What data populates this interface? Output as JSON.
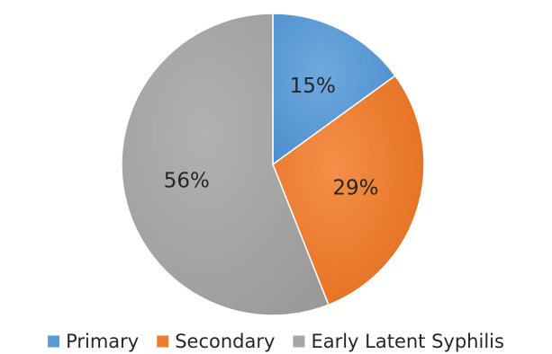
{
  "chart_data": {
    "type": "pie",
    "title": "",
    "slices": [
      {
        "label": "Primary",
        "value": 15,
        "display": "15%",
        "color": "#5B9BD5"
      },
      {
        "label": "Secondary",
        "value": 29,
        "display": "29%",
        "color": "#ED7D31"
      },
      {
        "label": "Early Latent Syphilis",
        "value": 56,
        "display": "56%",
        "color": "#A5A5A5"
      }
    ],
    "start_angle_deg": 0,
    "direction": "clockwise",
    "legend_position": "bottom"
  }
}
